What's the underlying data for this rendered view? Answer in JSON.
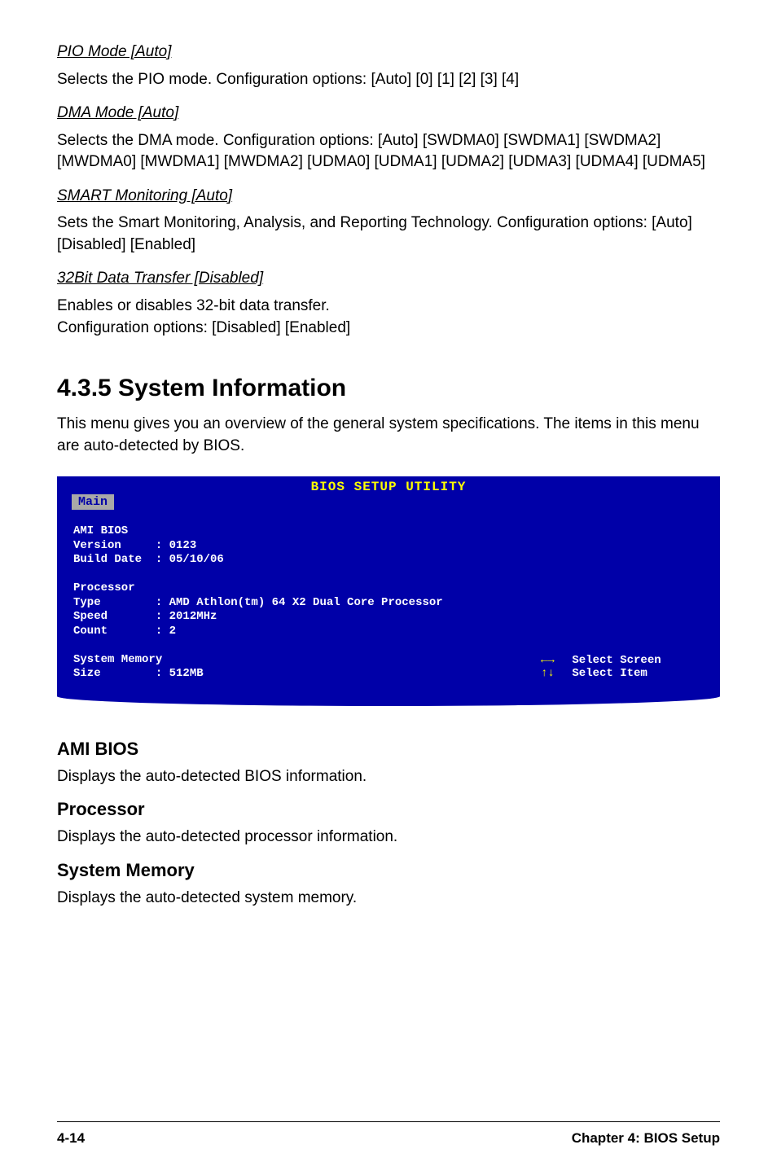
{
  "section1": {
    "pio_title": "PIO Mode [Auto]",
    "pio_body": "Selects the PIO mode. Configuration options: [Auto] [0] [1] [2] [3] [4]",
    "dma_title": "DMA Mode [Auto]",
    "dma_body": "Selects the DMA mode. Configuration options: [Auto] [SWDMA0] [SWDMA1] [SWDMA2] [MWDMA0] [MWDMA1] [MWDMA2] [UDMA0] [UDMA1] [UDMA2] [UDMA3] [UDMA4] [UDMA5]",
    "smart_title": "SMART Monitoring [Auto]",
    "smart_body": "Sets the Smart Monitoring, Analysis, and Reporting Technology. Configuration options: [Auto] [Disabled] [Enabled]",
    "bit32_title": "32Bit Data Transfer [Disabled]",
    "bit32_body": "Enables or disables 32-bit data transfer.\nConfiguration options: [Disabled] [Enabled]"
  },
  "section2": {
    "title": "4.3.5  System Information",
    "intro": "This menu gives you an overview of the general system specifications. The items in this menu are auto-detected by BIOS."
  },
  "bios": {
    "header": "BIOS SETUP UTILITY",
    "tab": "Main",
    "left_text": "AMI BIOS\nVersion     : 0123\nBuild Date  : 05/10/06\n\nProcessor\nType        : AMD Athlon(tm) 64 X2 Dual Core Processor\nSpeed       : 2012MHz\nCount       : 2\n\nSystem Memory\nSize        : 512MB",
    "help1_arrow": "←→",
    "help1_text": "Select Screen",
    "help2_arrow": "↑↓",
    "help2_text": "Select Item",
    "colors": {
      "panel_bg": "#0000a8",
      "header_fg": "#ffff00",
      "tab_bg": "#a8a8a8",
      "tab_fg": "#0000a8",
      "body_fg": "#ffffff",
      "arrow_fg": "#ffff00"
    }
  },
  "subs": {
    "ami_title": "AMI BIOS",
    "ami_body": "Displays the auto-detected BIOS information.",
    "proc_title": "Processor",
    "proc_body": "Displays the auto-detected processor information.",
    "mem_title": "System Memory",
    "mem_body": "Displays the auto-detected system memory."
  },
  "footer": {
    "left": "4-14",
    "right": "Chapter 4: BIOS Setup"
  }
}
